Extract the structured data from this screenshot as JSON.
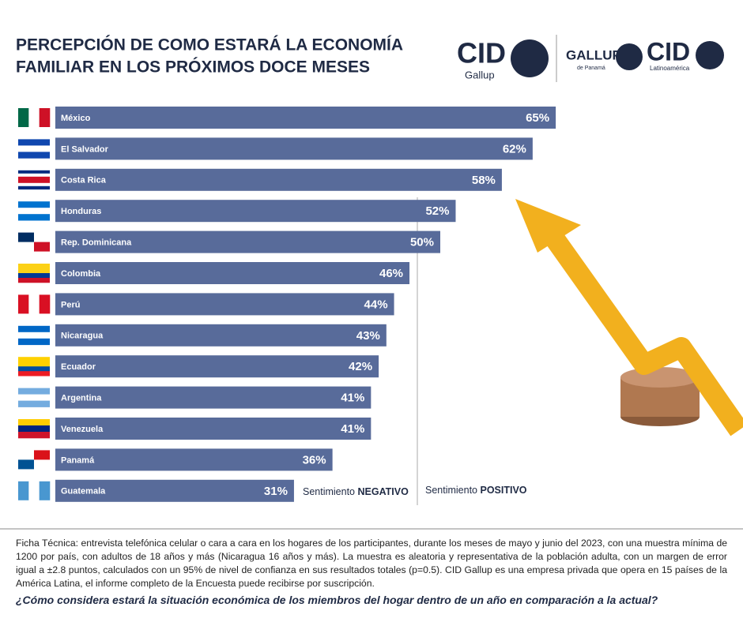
{
  "chart_data": {
    "type": "bar",
    "orientation": "horizontal",
    "title": [
      "PERCEPCIÓN DE COMO ESTARÁ LA ECONOMÍA",
      "FAMILIAR EN LOS PRÓXIMOS DOCE MESES"
    ],
    "categories": [
      "México",
      "El Salvador",
      "Costa Rica",
      "Honduras",
      "Rep. Dominicana",
      "Colombia",
      "Perú",
      "Nicaragua",
      "Ecuador",
      "Argentina",
      "Venezuela",
      "Panamá",
      "Guatemala"
    ],
    "values": [
      65,
      62,
      58,
      52,
      50,
      46,
      44,
      43,
      42,
      41,
      41,
      36,
      31
    ],
    "value_labels": [
      "65%",
      "62%",
      "58%",
      "52%",
      "50%",
      "46%",
      "44%",
      "43%",
      "42%",
      "41%",
      "41%",
      "36%",
      "31%"
    ],
    "color": "#586b9a",
    "negative_label": [
      "Sentimiento ",
      "NEGATIVO"
    ],
    "positive_label": [
      "Sentimiento ",
      "POSITIVO"
    ]
  },
  "logos": {
    "cid_gallup": [
      "CID",
      "Gallup"
    ],
    "gallup_panama": [
      "GALLUP",
      "de Panamá"
    ],
    "cid_latam": [
      "CID",
      "Latinoamérica"
    ]
  },
  "footnote": "Ficha Técnica: entrevista telefónica celular o cara a cara en los hogares de los participantes, durante los meses de mayo y junio del 2023, con una muestra mínima de 1200 por país, con adultos de 18 años y más (Nicaragua 16 años y más). La muestra es aleatoria y representativa de la población adulta, con un margen de error igual a ±2.8 puntos, calculados con un 95% de nivel de confianza en sus resultados totales (p=0.5). CID Gallup es una empresa privada que opera en 15 países de la América Latina, el informe completo de la Encuesta puede recibirse por suscripción.",
  "question": "¿Cómo considera estará la situación económica de los miembros del hogar dentro de un año en comparación a la actual?"
}
